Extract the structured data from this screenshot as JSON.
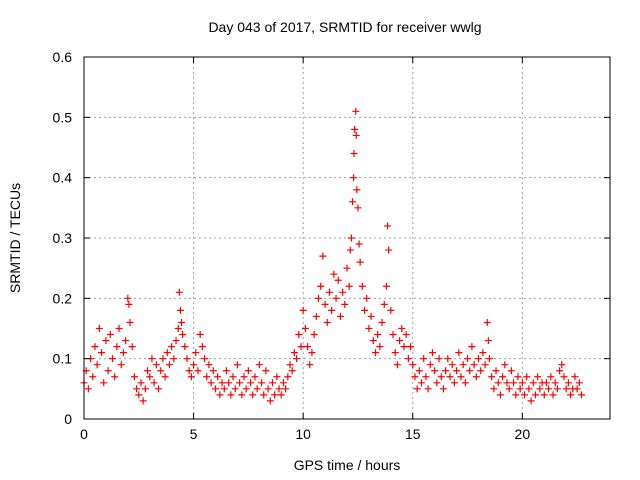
{
  "chart_data": {
    "type": "scatter",
    "title": "Day 043 of 2017, SRMTID for receiver wwlg",
    "xlabel": "GPS time / hours",
    "ylabel": "SRMTID / TECUs",
    "xlim": [
      0,
      24
    ],
    "ylim": [
      0,
      0.6
    ],
    "x_ticks": [
      0,
      5,
      10,
      15,
      20
    ],
    "x_tick_labels": [
      "0",
      "5",
      "10",
      "15",
      "20"
    ],
    "y_ticks": [
      0,
      0.1,
      0.2,
      0.3,
      0.4,
      0.5,
      0.6
    ],
    "y_tick_labels": [
      "0",
      "0.1",
      "0.2",
      "0.3",
      "0.4",
      "0.5",
      "0.6"
    ],
    "grid": true,
    "marker": "+",
    "color": "#ff0000",
    "series": [
      {
        "name": "SRMTID",
        "points": [
          [
            0.0,
            0.06
          ],
          [
            0.1,
            0.08
          ],
          [
            0.2,
            0.05
          ],
          [
            0.3,
            0.1
          ],
          [
            0.4,
            0.07
          ],
          [
            0.5,
            0.12
          ],
          [
            0.6,
            0.09
          ],
          [
            0.7,
            0.15
          ],
          [
            0.8,
            0.11
          ],
          [
            0.9,
            0.06
          ],
          [
            1.0,
            0.13
          ],
          [
            1.1,
            0.08
          ],
          [
            1.2,
            0.14
          ],
          [
            1.3,
            0.1
          ],
          [
            1.4,
            0.07
          ],
          [
            1.5,
            0.12
          ],
          [
            1.6,
            0.15
          ],
          [
            1.7,
            0.09
          ],
          [
            1.8,
            0.11
          ],
          [
            1.9,
            0.13
          ],
          [
            2.0,
            0.2
          ],
          [
            2.05,
            0.19
          ],
          [
            2.1,
            0.16
          ],
          [
            2.2,
            0.12
          ],
          [
            2.3,
            0.07
          ],
          [
            2.4,
            0.05
          ],
          [
            2.5,
            0.04
          ],
          [
            2.6,
            0.06
          ],
          [
            2.7,
            0.03
          ],
          [
            2.8,
            0.05
          ],
          [
            2.9,
            0.08
          ],
          [
            3.0,
            0.07
          ],
          [
            3.1,
            0.1
          ],
          [
            3.2,
            0.06
          ],
          [
            3.3,
            0.09
          ],
          [
            3.4,
            0.05
          ],
          [
            3.5,
            0.08
          ],
          [
            3.6,
            0.1
          ],
          [
            3.7,
            0.07
          ],
          [
            3.8,
            0.11
          ],
          [
            3.9,
            0.09
          ],
          [
            4.0,
            0.12
          ],
          [
            4.1,
            0.1
          ],
          [
            4.2,
            0.13
          ],
          [
            4.3,
            0.15
          ],
          [
            4.35,
            0.21
          ],
          [
            4.4,
            0.18
          ],
          [
            4.45,
            0.16
          ],
          [
            4.5,
            0.14
          ],
          [
            4.6,
            0.12
          ],
          [
            4.7,
            0.1
          ],
          [
            4.8,
            0.08
          ],
          [
            4.9,
            0.07
          ],
          [
            5.0,
            0.09
          ],
          [
            5.1,
            0.11
          ],
          [
            5.2,
            0.08
          ],
          [
            5.3,
            0.14
          ],
          [
            5.4,
            0.12
          ],
          [
            5.5,
            0.1
          ],
          [
            5.6,
            0.07
          ],
          [
            5.7,
            0.09
          ],
          [
            5.8,
            0.06
          ],
          [
            5.9,
            0.08
          ],
          [
            6.0,
            0.05
          ],
          [
            6.1,
            0.07
          ],
          [
            6.2,
            0.04
          ],
          [
            6.3,
            0.06
          ],
          [
            6.4,
            0.05
          ],
          [
            6.5,
            0.08
          ],
          [
            6.6,
            0.06
          ],
          [
            6.7,
            0.04
          ],
          [
            6.8,
            0.07
          ],
          [
            6.9,
            0.05
          ],
          [
            7.0,
            0.09
          ],
          [
            7.1,
            0.06
          ],
          [
            7.2,
            0.04
          ],
          [
            7.3,
            0.07
          ],
          [
            7.4,
            0.05
          ],
          [
            7.5,
            0.08
          ],
          [
            7.6,
            0.06
          ],
          [
            7.7,
            0.04
          ],
          [
            7.8,
            0.07
          ],
          [
            7.9,
            0.05
          ],
          [
            8.0,
            0.09
          ],
          [
            8.1,
            0.06
          ],
          [
            8.2,
            0.04
          ],
          [
            8.3,
            0.08
          ],
          [
            8.4,
            0.05
          ],
          [
            8.5,
            0.03
          ],
          [
            8.6,
            0.06
          ],
          [
            8.7,
            0.04
          ],
          [
            8.8,
            0.07
          ],
          [
            8.9,
            0.05
          ],
          [
            9.0,
            0.04
          ],
          [
            9.1,
            0.06
          ],
          [
            9.2,
            0.05
          ],
          [
            9.3,
            0.07
          ],
          [
            9.4,
            0.09
          ],
          [
            9.5,
            0.08
          ],
          [
            9.6,
            0.11
          ],
          [
            9.7,
            0.1
          ],
          [
            9.8,
            0.14
          ],
          [
            9.9,
            0.12
          ],
          [
            10.0,
            0.18
          ],
          [
            10.1,
            0.15
          ],
          [
            10.2,
            0.12
          ],
          [
            10.3,
            0.09
          ],
          [
            10.4,
            0.11
          ],
          [
            10.5,
            0.14
          ],
          [
            10.6,
            0.17
          ],
          [
            10.7,
            0.2
          ],
          [
            10.8,
            0.22
          ],
          [
            10.9,
            0.27
          ],
          [
            11.0,
            0.19
          ],
          [
            11.1,
            0.16
          ],
          [
            11.2,
            0.21
          ],
          [
            11.3,
            0.18
          ],
          [
            11.4,
            0.24
          ],
          [
            11.5,
            0.2
          ],
          [
            11.6,
            0.23
          ],
          [
            11.7,
            0.17
          ],
          [
            11.8,
            0.21
          ],
          [
            11.9,
            0.19
          ],
          [
            12.0,
            0.25
          ],
          [
            12.1,
            0.22
          ],
          [
            12.15,
            0.28
          ],
          [
            12.2,
            0.3
          ],
          [
            12.25,
            0.36
          ],
          [
            12.3,
            0.4
          ],
          [
            12.32,
            0.44
          ],
          [
            12.35,
            0.48
          ],
          [
            12.4,
            0.51
          ],
          [
            12.42,
            0.47
          ],
          [
            12.45,
            0.38
          ],
          [
            12.5,
            0.35
          ],
          [
            12.55,
            0.29
          ],
          [
            12.6,
            0.26
          ],
          [
            12.7,
            0.22
          ],
          [
            12.8,
            0.18
          ],
          [
            12.9,
            0.2
          ],
          [
            13.0,
            0.15
          ],
          [
            13.1,
            0.17
          ],
          [
            13.2,
            0.13
          ],
          [
            13.3,
            0.11
          ],
          [
            13.4,
            0.14
          ],
          [
            13.5,
            0.12
          ],
          [
            13.6,
            0.16
          ],
          [
            13.7,
            0.19
          ],
          [
            13.8,
            0.22
          ],
          [
            13.85,
            0.32
          ],
          [
            13.9,
            0.28
          ],
          [
            14.0,
            0.18
          ],
          [
            14.1,
            0.14
          ],
          [
            14.2,
            0.11
          ],
          [
            14.3,
            0.09
          ],
          [
            14.4,
            0.13
          ],
          [
            14.5,
            0.15
          ],
          [
            14.6,
            0.12
          ],
          [
            14.7,
            0.14
          ],
          [
            14.8,
            0.1
          ],
          [
            14.9,
            0.12
          ],
          [
            15.0,
            0.09
          ],
          [
            15.1,
            0.07
          ],
          [
            15.2,
            0.05
          ],
          [
            15.3,
            0.08
          ],
          [
            15.4,
            0.06
          ],
          [
            15.5,
            0.1
          ],
          [
            15.6,
            0.07
          ],
          [
            15.7,
            0.05
          ],
          [
            15.8,
            0.09
          ],
          [
            15.9,
            0.11
          ],
          [
            16.0,
            0.08
          ],
          [
            16.1,
            0.06
          ],
          [
            16.2,
            0.1
          ],
          [
            16.3,
            0.07
          ],
          [
            16.4,
            0.05
          ],
          [
            16.5,
            0.08
          ],
          [
            16.6,
            0.1
          ],
          [
            16.7,
            0.07
          ],
          [
            16.8,
            0.09
          ],
          [
            16.9,
            0.06
          ],
          [
            17.0,
            0.08
          ],
          [
            17.1,
            0.11
          ],
          [
            17.2,
            0.07
          ],
          [
            17.3,
            0.09
          ],
          [
            17.4,
            0.06
          ],
          [
            17.5,
            0.1
          ],
          [
            17.6,
            0.08
          ],
          [
            17.7,
            0.12
          ],
          [
            17.8,
            0.09
          ],
          [
            17.9,
            0.07
          ],
          [
            18.0,
            0.1
          ],
          [
            18.1,
            0.08
          ],
          [
            18.2,
            0.11
          ],
          [
            18.3,
            0.09
          ],
          [
            18.4,
            0.16
          ],
          [
            18.45,
            0.13
          ],
          [
            18.5,
            0.1
          ],
          [
            18.6,
            0.07
          ],
          [
            18.7,
            0.05
          ],
          [
            18.8,
            0.08
          ],
          [
            18.9,
            0.06
          ],
          [
            19.0,
            0.04
          ],
          [
            19.1,
            0.07
          ],
          [
            19.2,
            0.09
          ],
          [
            19.3,
            0.06
          ],
          [
            19.4,
            0.05
          ],
          [
            19.5,
            0.08
          ],
          [
            19.6,
            0.06
          ],
          [
            19.7,
            0.04
          ],
          [
            19.8,
            0.07
          ],
          [
            19.9,
            0.05
          ],
          [
            20.0,
            0.06
          ],
          [
            20.1,
            0.04
          ],
          [
            20.2,
            0.07
          ],
          [
            20.3,
            0.05
          ],
          [
            20.4,
            0.03
          ],
          [
            20.5,
            0.06
          ],
          [
            20.6,
            0.04
          ],
          [
            20.7,
            0.07
          ],
          [
            20.8,
            0.05
          ],
          [
            20.9,
            0.06
          ],
          [
            21.0,
            0.04
          ],
          [
            21.1,
            0.06
          ],
          [
            21.2,
            0.05
          ],
          [
            21.3,
            0.07
          ],
          [
            21.4,
            0.04
          ],
          [
            21.5,
            0.06
          ],
          [
            21.6,
            0.05
          ],
          [
            21.7,
            0.08
          ],
          [
            21.8,
            0.09
          ],
          [
            21.9,
            0.07
          ],
          [
            22.0,
            0.05
          ],
          [
            22.1,
            0.06
          ],
          [
            22.2,
            0.04
          ],
          [
            22.3,
            0.05
          ],
          [
            22.4,
            0.07
          ],
          [
            22.5,
            0.05
          ],
          [
            22.6,
            0.06
          ],
          [
            22.7,
            0.04
          ]
        ]
      }
    ]
  }
}
